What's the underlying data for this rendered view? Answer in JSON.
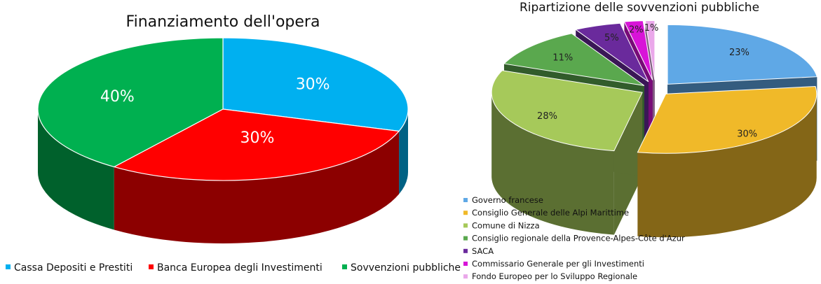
{
  "chart_data": [
    {
      "type": "pie",
      "title": "Finanziamento dell'opera",
      "legend_position": "bottom",
      "slices": [
        {
          "name": "Cassa Depositi e Prestiti",
          "value": 30,
          "label": "30%",
          "color": "#00b0f0"
        },
        {
          "name": "Banca Europea degli Investimenti",
          "value": 30,
          "label": "30%",
          "color": "#ff0000"
        },
        {
          "name": "Sovvenzioni pubbliche",
          "value": 40,
          "label": "40%",
          "color": "#00b050"
        }
      ]
    },
    {
      "type": "pie",
      "title": "Ripartizione delle sovvenzioni pubbliche",
      "legend_position": "bottom-left",
      "slices": [
        {
          "name": "Governo francese",
          "value": 23,
          "label": "23%",
          "color": "#5fa8e6"
        },
        {
          "name": "Consiglio Generale delle Alpi Marittime",
          "value": 30,
          "label": "30%",
          "color": "#f0b929"
        },
        {
          "name": "Comune di Nizza",
          "value": 28,
          "label": "28%",
          "color": "#a6c95a"
        },
        {
          "name": "Consiglio regionale della Provence-Alpes-Côte d'Azur",
          "value": 11,
          "label": "11%",
          "color": "#5aa84e"
        },
        {
          "name": "SACA",
          "value": 5,
          "label": "5%",
          "color": "#6a2a9c"
        },
        {
          "name": "Commissario Generale per gli Investimenti",
          "value": 2,
          "label": "2%",
          "color": "#d814d8"
        },
        {
          "name": "Fondo Europeo per lo Sviluppo Regionale",
          "value": 1,
          "label": "1%",
          "color": "#eaa8ea"
        }
      ]
    }
  ]
}
